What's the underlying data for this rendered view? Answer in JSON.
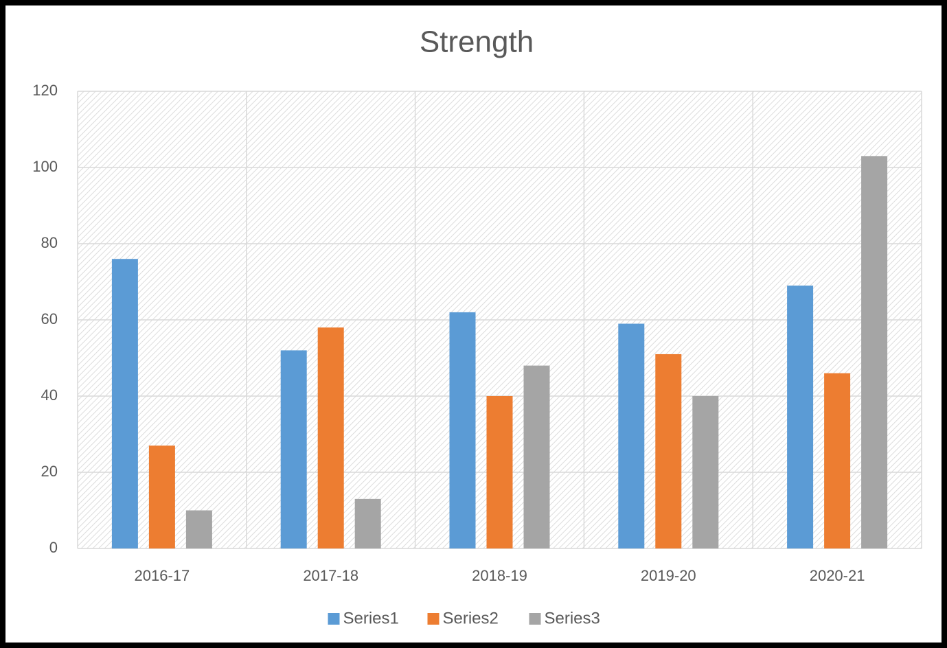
{
  "chart_data": {
    "type": "bar",
    "title": "Strength",
    "categories": [
      "2016-17",
      "2017-18",
      "2018-19",
      "2019-20",
      "2020-21"
    ],
    "series": [
      {
        "name": "Series1",
        "color": "#5b9bd5",
        "values": [
          76,
          52,
          62,
          59,
          69
        ]
      },
      {
        "name": "Series2",
        "color": "#ed7d31",
        "values": [
          27,
          58,
          40,
          51,
          46
        ]
      },
      {
        "name": "Series3",
        "color": "#a5a5a5",
        "values": [
          10,
          13,
          48,
          40,
          103
        ]
      }
    ],
    "ylim": [
      0,
      120
    ],
    "yticks": [
      0,
      20,
      40,
      60,
      80,
      100,
      120
    ],
    "grid": true,
    "legend": "bottom"
  }
}
